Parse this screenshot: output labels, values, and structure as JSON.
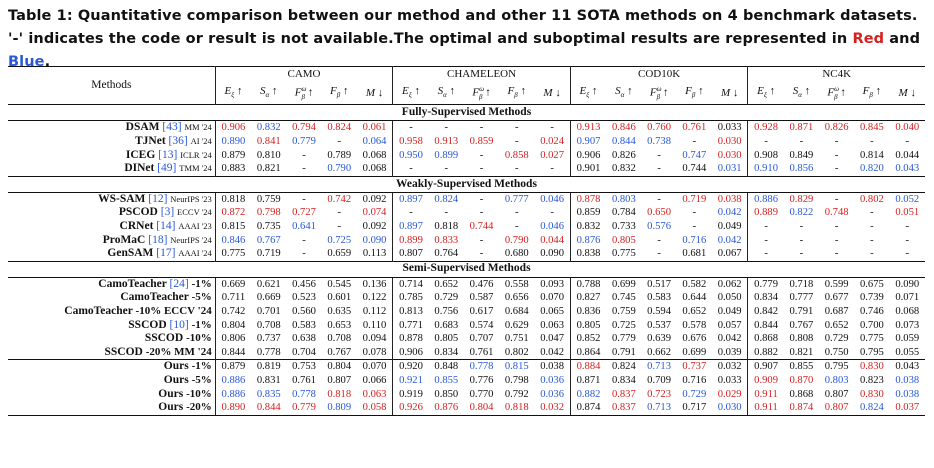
{
  "caption": {
    "prefix": "Table 1: Quantitative comparison between our method and other 11 SOTA methods on 4 benchmark datasets. '-' indicates the code or result is not available.The optimal and suboptimal results are represented in ",
    "red_word": "Red",
    "and_word": " and ",
    "blue_word": "Blue",
    "suffix": "."
  },
  "colors": {
    "optimal": "#d62020",
    "suboptimal": "#2a58d6"
  },
  "header": {
    "methods_label": "Methods",
    "datasets": [
      "CAMO",
      "CHAMELEON",
      "COD10K",
      "NC4K"
    ],
    "metrics": [
      "Eξ ↑",
      "Sα ↑",
      "Fωβ ↑",
      "Fβ ↑",
      "M ↓"
    ]
  },
  "sections": [
    {
      "title": "Fully-Supervised Methods",
      "rows": [
        {
          "name": "DSAM",
          "ref": "[43]",
          "venue": "MM '24",
          "v": [
            "0.906",
            "0.832",
            "0.794",
            "0.824",
            "0.061",
            "-",
            "-",
            "-",
            "-",
            "-",
            "0.913",
            "0.846",
            "0.760",
            "0.761",
            "0.033",
            "0.928",
            "0.871",
            "0.826",
            "0.845",
            "0.040"
          ],
          "c": [
            "r",
            "b",
            "r",
            "r",
            "r",
            "",
            "",
            "",
            "",
            "",
            "r",
            "r",
            "r",
            "r",
            "",
            "r",
            "r",
            "r",
            "r",
            "r"
          ]
        },
        {
          "name": "TJNet",
          "ref": "[36]",
          "venue": "AI '24",
          "v": [
            "0.890",
            "0.841",
            "0.779",
            "-",
            "0.064",
            "0.958",
            "0.913",
            "0.859",
            "-",
            "0.024",
            "0.907",
            "0.844",
            "0.738",
            "-",
            "0.030",
            "-",
            "-",
            "-",
            "-",
            "-"
          ],
          "c": [
            "b",
            "r",
            "b",
            "",
            "b",
            "r",
            "r",
            "r",
            "",
            "r",
            "b",
            "b",
            "b",
            "",
            "r",
            "",
            "",
            "",
            "",
            ""
          ]
        },
        {
          "name": "ICEG",
          "ref": "[13]",
          "venue": "ICLR '24",
          "v": [
            "0.879",
            "0.810",
            "-",
            "0.789",
            "0.068",
            "0.950",
            "0.899",
            "-",
            "0.858",
            "0.027",
            "0.906",
            "0.826",
            "-",
            "0.747",
            "0.030",
            "0.908",
            "0.849",
            "-",
            "0.814",
            "0.044"
          ],
          "c": [
            "",
            "",
            "",
            "",
            "",
            "b",
            "b",
            "",
            "r",
            "r",
            "",
            "",
            "",
            "b",
            "r",
            "",
            "",
            "",
            "",
            ""
          ]
        },
        {
          "name": "DINet",
          "ref": "[49]",
          "venue": "TMM '24",
          "v": [
            "0.883",
            "0.821",
            "-",
            "0.790",
            "0.068",
            "-",
            "-",
            "-",
            "-",
            "-",
            "0.901",
            "0.832",
            "-",
            "0.744",
            "0.031",
            "0.910",
            "0.856",
            "-",
            "0.820",
            "0.043"
          ],
          "c": [
            "",
            "",
            "",
            "b",
            "",
            "",
            "",
            "",
            "",
            "",
            "",
            "",
            "",
            "",
            "b",
            "b",
            "b",
            "",
            "b",
            "b"
          ]
        }
      ]
    },
    {
      "title": "Weakly-Supervised Methods",
      "rows": [
        {
          "name": "WS-SAM",
          "ref": "[12]",
          "venue": "NeurIPS '23",
          "v": [
            "0.818",
            "0.759",
            "-",
            "0.742",
            "0.092",
            "0.897",
            "0.824",
            "-",
            "0.777",
            "0.046",
            "0.878",
            "0.803",
            "-",
            "0.719",
            "0.038",
            "0.886",
            "0.829",
            "-",
            "0.802",
            "0.052"
          ],
          "c": [
            "",
            "",
            "",
            "r",
            "",
            "b",
            "b",
            "",
            "b",
            "b",
            "r",
            "b",
            "",
            "r",
            "r",
            "b",
            "r",
            "",
            "r",
            "b"
          ]
        },
        {
          "name": "PSCOD",
          "ref": "[3]",
          "venue": "ECCV '24",
          "v": [
            "0.872",
            "0.798",
            "0.727",
            "-",
            "0.074",
            "-",
            "-",
            "-",
            "-",
            "-",
            "0.859",
            "0.784",
            "0.650",
            "-",
            "0.042",
            "0.889",
            "0.822",
            "0.748",
            "-",
            "0.051"
          ],
          "c": [
            "r",
            "r",
            "r",
            "",
            "r",
            "",
            "",
            "",
            "",
            "",
            "",
            "",
            "r",
            "",
            "b",
            "r",
            "b",
            "r",
            "",
            "r"
          ]
        },
        {
          "name": "CRNet",
          "ref": "[14]",
          "venue": "AAAI '23",
          "v": [
            "0.815",
            "0.735",
            "0.641",
            "-",
            "0.092",
            "0.897",
            "0.818",
            "0.744",
            "-",
            "0.046",
            "0.832",
            "0.733",
            "0.576",
            "-",
            "0.049",
            "-",
            "-",
            "-",
            "-",
            "-"
          ],
          "c": [
            "",
            "",
            "b",
            "",
            "",
            "b",
            "",
            "r",
            "",
            "b",
            "",
            "",
            "b",
            "",
            "",
            "",
            "",
            "",
            "",
            ""
          ]
        },
        {
          "name": "ProMaC",
          "ref": "[18]",
          "venue": "NeurIPS '24",
          "v": [
            "0.846",
            "0.767",
            "-",
            "0.725",
            "0.090",
            "0.899",
            "0.833",
            "-",
            "0.790",
            "0.044",
            "0.876",
            "0.805",
            "-",
            "0.716",
            "0.042",
            "-",
            "-",
            "-",
            "-",
            "-"
          ],
          "c": [
            "b",
            "b",
            "",
            "b",
            "b",
            "r",
            "r",
            "",
            "r",
            "r",
            "b",
            "r",
            "",
            "b",
            "b",
            "",
            "",
            "",
            "",
            ""
          ]
        },
        {
          "name": "GenSAM",
          "ref": "[17]",
          "venue": "AAAI '24",
          "v": [
            "0.775",
            "0.719",
            "-",
            "0.659",
            "0.113",
            "0.807",
            "0.764",
            "-",
            "0.680",
            "0.090",
            "0.838",
            "0.775",
            "-",
            "0.681",
            "0.067",
            "-",
            "-",
            "-",
            "-",
            "-"
          ],
          "c": [
            "",
            "",
            "",
            "",
            "",
            "",
            "",
            "",
            "",
            "",
            "",
            "",
            "",
            "",
            "",
            "",
            "",
            "",
            "",
            ""
          ]
        }
      ]
    },
    {
      "title": "Semi-Supervised Methods",
      "rows": [
        {
          "name": "CamoTeacher",
          "ref": "[24]",
          "venue": "-1%",
          "v": [
            "0.669",
            "0.621",
            "0.456",
            "0.545",
            "0.136",
            "0.714",
            "0.652",
            "0.476",
            "0.558",
            "0.093",
            "0.788",
            "0.699",
            "0.517",
            "0.582",
            "0.062",
            "0.779",
            "0.718",
            "0.599",
            "0.675",
            "0.090"
          ],
          "c": [
            "",
            "",
            "",
            "",
            "",
            "",
            "",
            "",
            "",
            "",
            "",
            "",
            "",
            "",
            "",
            "",
            "",
            "",
            "",
            ""
          ]
        },
        {
          "name": "CamoTeacher",
          "ref": "",
          "venue": "-5%",
          "v": [
            "0.711",
            "0.669",
            "0.523",
            "0.601",
            "0.122",
            "0.785",
            "0.729",
            "0.587",
            "0.656",
            "0.070",
            "0.827",
            "0.745",
            "0.583",
            "0.644",
            "0.050",
            "0.834",
            "0.777",
            "0.677",
            "0.739",
            "0.071"
          ],
          "c": [
            "",
            "",
            "",
            "",
            "",
            "",
            "",
            "",
            "",
            "",
            "",
            "",
            "",
            "",
            "",
            "",
            "",
            "",
            "",
            ""
          ]
        },
        {
          "name": "CamoTeacher",
          "ref": "",
          "venue": "-10% ECCV '24",
          "v": [
            "0.742",
            "0.701",
            "0.560",
            "0.635",
            "0.112",
            "0.813",
            "0.756",
            "0.617",
            "0.684",
            "0.065",
            "0.836",
            "0.759",
            "0.594",
            "0.652",
            "0.049",
            "0.842",
            "0.791",
            "0.687",
            "0.746",
            "0.068"
          ],
          "c": [
            "",
            "",
            "",
            "",
            "",
            "",
            "",
            "",
            "",
            "",
            "",
            "",
            "",
            "",
            "",
            "",
            "",
            "",
            "",
            ""
          ]
        },
        {
          "name": "SSCOD",
          "ref": "[10]",
          "venue": "-1%",
          "v": [
            "0.804",
            "0.708",
            "0.583",
            "0.653",
            "0.110",
            "0.771",
            "0.683",
            "0.574",
            "0.629",
            "0.063",
            "0.805",
            "0.725",
            "0.537",
            "0.578",
            "0.057",
            "0.844",
            "0.767",
            "0.652",
            "0.700",
            "0.073"
          ],
          "c": [
            "",
            "",
            "",
            "",
            "",
            "",
            "",
            "",
            "",
            "",
            "",
            "",
            "",
            "",
            "",
            "",
            "",
            "",
            "",
            ""
          ]
        },
        {
          "name": "SSCOD",
          "ref": "",
          "venue": "-10%",
          "v": [
            "0.806",
            "0.737",
            "0.638",
            "0.708",
            "0.094",
            "0.878",
            "0.805",
            "0.707",
            "0.751",
            "0.047",
            "0.852",
            "0.779",
            "0.639",
            "0.676",
            "0.042",
            "0.868",
            "0.808",
            "0.729",
            "0.775",
            "0.059"
          ],
          "c": [
            "",
            "",
            "",
            "",
            "",
            "",
            "",
            "",
            "",
            "",
            "",
            "",
            "",
            "",
            "",
            "",
            "",
            "",
            "",
            ""
          ]
        },
        {
          "name": "SSCOD",
          "ref": "",
          "venue": "-20% MM '24",
          "v": [
            "0.844",
            "0.778",
            "0.704",
            "0.767",
            "0.078",
            "0.906",
            "0.834",
            "0.761",
            "0.802",
            "0.042",
            "0.864",
            "0.791",
            "0.662",
            "0.699",
            "0.039",
            "0.882",
            "0.821",
            "0.750",
            "0.795",
            "0.055"
          ],
          "c": [
            "",
            "",
            "",
            "",
            "",
            "",
            "",
            "",
            "",
            "",
            "",
            "",
            "",
            "",
            "",
            "",
            "",
            "",
            "",
            ""
          ]
        }
      ]
    },
    {
      "title": "",
      "rows": [
        {
          "name": "Ours",
          "ref": "",
          "venue": "-1%",
          "v": [
            "0.879",
            "0.819",
            "0.753",
            "0.804",
            "0.070",
            "0.920",
            "0.848",
            "0.778",
            "0.815",
            "0.038",
            "0.884",
            "0.824",
            "0.713",
            "0.737",
            "0.032",
            "0.907",
            "0.855",
            "0.795",
            "0.830",
            "0.043"
          ],
          "c": [
            "",
            "",
            "",
            "",
            "",
            "",
            "",
            "b",
            "b",
            "",
            "r",
            "",
            "b",
            "r",
            "",
            "",
            "",
            "",
            "r",
            ""
          ]
        },
        {
          "name": "Ours",
          "ref": "",
          "venue": "-5%",
          "v": [
            "0.886",
            "0.831",
            "0.761",
            "0.807",
            "0.066",
            "0.921",
            "0.855",
            "0.776",
            "0.798",
            "0.036",
            "0.871",
            "0.834",
            "0.709",
            "0.716",
            "0.033",
            "0.909",
            "0.870",
            "0.803",
            "0.823",
            "0.038"
          ],
          "c": [
            "b",
            "",
            "",
            "",
            "",
            "b",
            "b",
            "",
            "",
            "b",
            "",
            "",
            "",
            "",
            "",
            "r",
            "r",
            "b",
            "",
            "b"
          ]
        },
        {
          "name": "Ours",
          "ref": "",
          "venue": "-10%",
          "v": [
            "0.886",
            "0.835",
            "0.778",
            "0.818",
            "0.063",
            "0.919",
            "0.850",
            "0.770",
            "0.792",
            "0.036",
            "0.882",
            "0.837",
            "0.723",
            "0.729",
            "0.029",
            "0.911",
            "0.868",
            "0.807",
            "0.830",
            "0.038"
          ],
          "c": [
            "b",
            "b",
            "b",
            "r",
            "r",
            "",
            "",
            "",
            "",
            "b",
            "b",
            "r",
            "r",
            "b",
            "r",
            "r",
            "",
            "",
            "r",
            "b"
          ]
        },
        {
          "name": "Ours",
          "ref": "",
          "venue": "-20%",
          "v": [
            "0.890",
            "0.844",
            "0.779",
            "0.809",
            "0.058",
            "0.926",
            "0.876",
            "0.804",
            "0.818",
            "0.032",
            "0.874",
            "0.837",
            "0.713",
            "0.717",
            "0.030",
            "0.911",
            "0.874",
            "0.807",
            "0.824",
            "0.037"
          ],
          "c": [
            "r",
            "r",
            "r",
            "b",
            "r",
            "r",
            "r",
            "r",
            "r",
            "r",
            "",
            "r",
            "b",
            "",
            "b",
            "r",
            "r",
            "r",
            "b",
            "r"
          ]
        }
      ]
    }
  ]
}
